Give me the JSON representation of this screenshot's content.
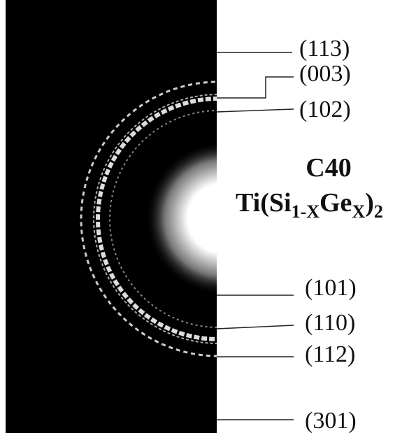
{
  "labels": [
    "(113)",
    "(003)",
    "(102)",
    "(101)",
    "(110)",
    "(112)",
    "(301)"
  ],
  "phase": "C40",
  "formula": {
    "parts": [
      "Ti(Si",
      "1-X",
      "Ge",
      "X",
      ")",
      "2"
    ]
  }
}
